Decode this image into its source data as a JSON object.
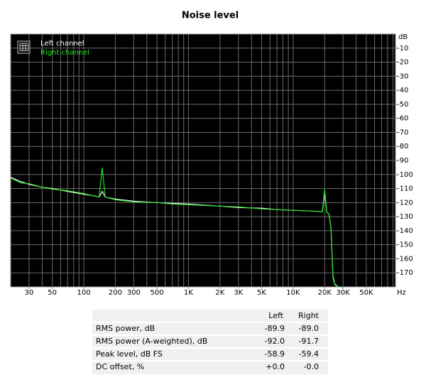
{
  "chart_data": {
    "type": "line",
    "title": "Noise level",
    "x_label": "Hz",
    "y_label": "dB",
    "log_x": true,
    "grid": true,
    "legend": "top-left",
    "x": [
      20,
      25,
      30,
      40,
      50,
      70,
      100,
      120,
      140,
      150,
      160,
      200,
      300,
      500,
      700,
      1000,
      2000,
      3000,
      5000,
      7000,
      10000,
      15000,
      19000,
      20000,
      21000,
      22000,
      23000,
      24000,
      25000,
      27000
    ],
    "series": [
      {
        "name": "Left channel",
        "color": "#ffffff",
        "values": [
          -102,
          -105,
          -107,
          -109,
          -110,
          -112,
          -114,
          -115,
          -116,
          -112,
          -116,
          -117.5,
          -119,
          -120,
          -120.5,
          -121,
          -122.5,
          -123.5,
          -124,
          -125,
          -125.5,
          -126,
          -126.5,
          -113,
          -127,
          -128,
          -138,
          -172,
          -178,
          -180
        ]
      },
      {
        "name": "Right channel",
        "color": "#22e022",
        "values": [
          -102.5,
          -106,
          -106.5,
          -109,
          -110.5,
          -111.5,
          -113.5,
          -115,
          -116,
          -95,
          -116,
          -118,
          -119.5,
          -120,
          -121,
          -121.5,
          -122.5,
          -123,
          -124.5,
          -125,
          -125.5,
          -126,
          -126.5,
          -110.5,
          -127,
          -128,
          -138,
          -173.5,
          -178.5,
          -180
        ]
      }
    ],
    "xlim": [
      20,
      95000
    ],
    "xticks": [
      30,
      50,
      100,
      200,
      300,
      500,
      {
        "value": 1000,
        "label": "1K"
      },
      {
        "value": 2000,
        "label": "2K"
      },
      {
        "value": 3000,
        "label": "3K"
      },
      {
        "value": 5000,
        "label": "5K"
      },
      {
        "value": 10000,
        "label": "10K"
      },
      {
        "value": 20000,
        "label": "20K"
      },
      {
        "value": 30000,
        "label": "30K"
      },
      {
        "value": 50000,
        "label": "50K"
      }
    ],
    "x_minor_gridlines": [
      40,
      60,
      70,
      80,
      90,
      400,
      600,
      700,
      800,
      900,
      4000,
      6000,
      7000,
      8000,
      9000,
      40000,
      60000,
      70000,
      80000,
      90000
    ],
    "ylim": [
      -180,
      0
    ],
    "yticks": [
      -10,
      -20,
      -30,
      -40,
      -50,
      -60,
      -70,
      -80,
      -90,
      -100,
      -110,
      -120,
      -130,
      -140,
      -150,
      -160,
      -170
    ]
  },
  "table": {
    "header": [
      "Left",
      "Right"
    ],
    "rows": [
      [
        "RMS power, dB",
        "-89.9",
        "-89.0"
      ],
      [
        "RMS power (A-weighted), dB",
        "-92.0",
        "-91.7"
      ],
      [
        "Peak level, dB FS",
        "-58.9",
        "-59.4"
      ],
      [
        "DC offset, %",
        "+0.0",
        "-0.0"
      ]
    ]
  }
}
